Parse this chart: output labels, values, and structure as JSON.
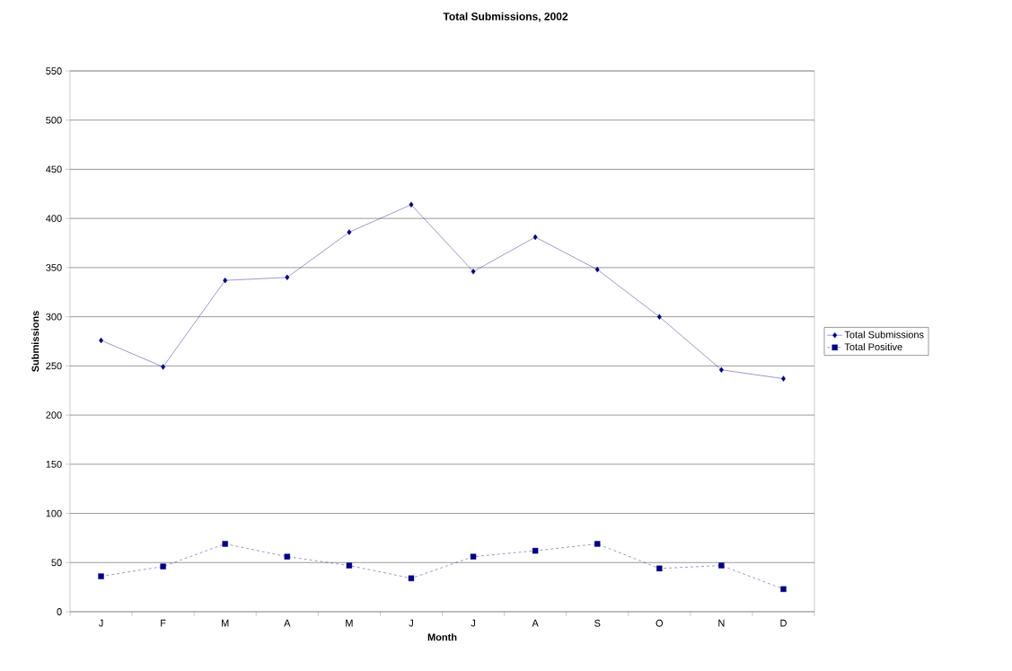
{
  "chart_data": {
    "type": "line",
    "title": "Total Submissions, 2002",
    "xlabel": "Month",
    "ylabel": "Submissions",
    "categories": [
      "J",
      "F",
      "M",
      "A",
      "M",
      "J",
      "J",
      "A",
      "S",
      "O",
      "N",
      "D"
    ],
    "series": [
      {
        "name": "Total Submissions",
        "color": "#000080",
        "marker": "diamond",
        "line_style": "solid",
        "values": [
          276,
          249,
          337,
          340,
          386,
          414,
          346,
          381,
          348,
          300,
          246,
          237
        ]
      },
      {
        "name": "Total Positive",
        "color": "#000080",
        "marker": "square",
        "line_style": "dashed",
        "values": [
          36,
          46,
          69,
          56,
          47,
          34,
          56,
          62,
          69,
          44,
          47,
          23
        ]
      }
    ],
    "ylim": [
      0,
      550
    ],
    "yticks": [
      0,
      50,
      100,
      150,
      200,
      250,
      300,
      350,
      400,
      450,
      500,
      550
    ],
    "grid": "y",
    "legend": "right"
  }
}
